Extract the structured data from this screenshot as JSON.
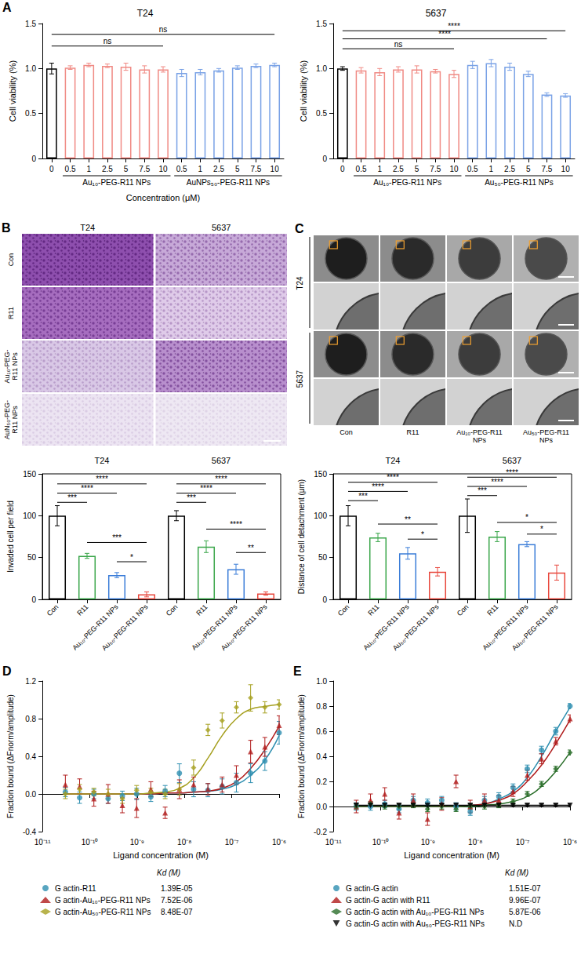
{
  "chart_data": [
    {
      "panel": "A",
      "type": "bar",
      "title": "T24",
      "x_label": "Concentration (μM)",
      "y_label": "Cell viability (%)",
      "categories": [
        0,
        0.5,
        1,
        2.5,
        5,
        7.5,
        10,
        0.5,
        1,
        2.5,
        5,
        7.5,
        10
      ],
      "values": [
        1.0,
        1.01,
        1.04,
        1.03,
        1.02,
        0.99,
        0.99,
        0.95,
        0.96,
        0.98,
        1.01,
        1.03,
        1.04
      ],
      "errors": [
        0.06,
        0.02,
        0.02,
        0.02,
        0.04,
        0.04,
        0.03,
        0.04,
        0.03,
        0.02,
        0.02,
        0.02,
        0.02
      ],
      "colors": [
        "#000000",
        "#f08a84",
        "#f08a84",
        "#f08a84",
        "#f08a84",
        "#f08a84",
        "#f08a84",
        "#7aa2e6",
        "#7aa2e6",
        "#7aa2e6",
        "#7aa2e6",
        "#7aa2e6",
        "#7aa2e6"
      ],
      "groups": [
        {
          "label": "Au₁₀-PEG-R11 NPs",
          "from": 1,
          "to": 6
        },
        {
          "label": "AuNPs₅₀-PEG-R11 NPs",
          "from": 7,
          "to": 12
        }
      ],
      "annotations": [
        {
          "text": "ns",
          "from": 0,
          "to": 12,
          "y": 1.38
        },
        {
          "text": "ns",
          "from": 0,
          "to": 6,
          "y": 1.25
        }
      ],
      "ylim": [
        0,
        1.5
      ],
      "yticks": [
        0,
        0.5,
        {
          "value": 1,
          "label": "1.0"
        },
        1.5
      ],
      "grid": false
    },
    {
      "type": "bar",
      "title": "5637",
      "y_label": "Cell viability (%)",
      "categories": [
        0,
        0.5,
        1,
        2.5,
        5,
        7.5,
        10,
        0.5,
        1,
        2.5,
        5,
        7.5,
        10
      ],
      "values": [
        1.0,
        0.98,
        0.96,
        0.99,
        0.99,
        0.97,
        0.94,
        1.04,
        1.06,
        1.02,
        0.94,
        0.71,
        0.7
      ],
      "errors": [
        0.02,
        0.03,
        0.04,
        0.03,
        0.04,
        0.02,
        0.04,
        0.04,
        0.04,
        0.04,
        0.03,
        0.02,
        0.02
      ],
      "colors": [
        "#000000",
        "#f08a84",
        "#f08a84",
        "#f08a84",
        "#f08a84",
        "#f08a84",
        "#f08a84",
        "#7aa2e6",
        "#7aa2e6",
        "#7aa2e6",
        "#7aa2e6",
        "#7aa2e6",
        "#7aa2e6"
      ],
      "groups": [
        {
          "label": "Au₁₀-PEG-R11 NPs",
          "from": 1,
          "to": 6
        },
        {
          "label": "Au₅₀-PEG-R11 NPs",
          "from": 7,
          "to": 12
        }
      ],
      "annotations": [
        {
          "text": "****",
          "from": 0,
          "to": 12,
          "y": 1.42
        },
        {
          "text": "****",
          "from": 0,
          "to": 11,
          "y": 1.33
        },
        {
          "text": "ns",
          "from": 0,
          "to": 6,
          "y": 1.22
        }
      ],
      "ylim": [
        0,
        1.5
      ],
      "yticks": [
        0,
        0.5,
        {
          "value": 1,
          "label": "1.0"
        },
        1.5
      ],
      "grid": false
    },
    {
      "type": "bar",
      "y_label": "Invaded cell per field",
      "categories": [
        "Con",
        "R11",
        "Au₁₀-PEG-R11 NPs",
        "Au₅₀-PEG-R11 NPs",
        "Con",
        "R11",
        "Au₁₀-PEG-R11 NPs",
        "Au₅₀-PEG-R11 NPs"
      ],
      "values": [
        100,
        52,
        29,
        6,
        100,
        63,
        36,
        7
      ],
      "errors": [
        12,
        3,
        3,
        3,
        6,
        7,
        6,
        2
      ],
      "colors": [
        "#000000",
        "#3aa64a",
        "#3b7dd8",
        "#e8473c",
        "#000000",
        "#3aa64a",
        "#3b7dd8",
        "#e8473c"
      ],
      "groups": [
        {
          "label": "T24",
          "from": 0,
          "to": 3
        },
        {
          "label": "5637",
          "from": 4,
          "to": 7
        }
      ],
      "annotations": [
        {
          "text": "***",
          "from": 0,
          "to": 1,
          "y": 116
        },
        {
          "text": "****",
          "from": 0,
          "to": 2,
          "y": 127
        },
        {
          "text": "****",
          "from": 0,
          "to": 3,
          "y": 138
        },
        {
          "text": "***",
          "from": 1,
          "to": 3,
          "y": 68
        },
        {
          "text": "*",
          "from": 2,
          "to": 3,
          "y": 45
        },
        {
          "text": "***",
          "from": 4,
          "to": 5,
          "y": 116
        },
        {
          "text": "****",
          "from": 4,
          "to": 6,
          "y": 127
        },
        {
          "text": "****",
          "from": 4,
          "to": 7,
          "y": 138
        },
        {
          "text": "****",
          "from": 5,
          "to": 7,
          "y": 84
        },
        {
          "text": "**",
          "from": 6,
          "to": 7,
          "y": 56
        }
      ],
      "ylim": [
        0,
        150
      ],
      "yticks": [
        0,
        50,
        100,
        150
      ],
      "grid": false
    },
    {
      "type": "bar",
      "y_label": "Distance of cell detachment (μm)",
      "categories": [
        "Con",
        "R11",
        "Au₁₀-PEG-R11 NPs",
        "Au₅₀-PEG-R11 NPs",
        "Con",
        "R11",
        "Au₁₀-PEG-R11 NPs",
        "Au₅₀-PEG-R11 NPs"
      ],
      "values": [
        100,
        74,
        55,
        33,
        100,
        75,
        66,
        32
      ],
      "errors": [
        12,
        5,
        7,
        5,
        20,
        6,
        3,
        9
      ],
      "colors": [
        "#000000",
        "#3aa64a",
        "#3b7dd8",
        "#e8473c",
        "#000000",
        "#3aa64a",
        "#3b7dd8",
        "#e8473c"
      ],
      "groups": [
        {
          "label": "T24",
          "from": 0,
          "to": 3
        },
        {
          "label": "5637",
          "from": 4,
          "to": 7
        }
      ],
      "annotations": [
        {
          "text": "***",
          "from": 0,
          "to": 1,
          "y": 118
        },
        {
          "text": "****",
          "from": 0,
          "to": 2,
          "y": 129
        },
        {
          "text": "****",
          "from": 0,
          "to": 3,
          "y": 140
        },
        {
          "text": "**",
          "from": 1,
          "to": 3,
          "y": 90
        },
        {
          "text": "*",
          "from": 2,
          "to": 3,
          "y": 72
        },
        {
          "text": "***",
          "from": 4,
          "to": 5,
          "y": 124
        },
        {
          "text": "****",
          "from": 4,
          "to": 6,
          "y": 135
        },
        {
          "text": "****",
          "from": 4,
          "to": 7,
          "y": 146
        },
        {
          "text": "*",
          "from": 5,
          "to": 7,
          "y": 92
        },
        {
          "text": "*",
          "from": 6,
          "to": 7,
          "y": 78
        }
      ],
      "ylim": [
        0,
        150
      ],
      "yticks": [
        0,
        50,
        100,
        150
      ],
      "grid": false
    },
    {
      "panel": "D",
      "type": "scatter",
      "x_label": "Ligand concentration (M)",
      "y_label": "Fraction bound (ΔFnorm/amplitude)",
      "log": "x",
      "legend": "bottom",
      "grid": false,
      "kd_header": "Kd (M)",
      "x": [
        3.05e-11,
        6.1e-11,
        1.22e-10,
        2.44e-10,
        4.88e-10,
        9.77e-10,
        1.95e-09,
        3.91e-09,
        7.81e-09,
        1.56e-08,
        3.13e-08,
        6.25e-08,
        1.25e-07,
        2.5e-07,
        5e-07,
        1e-06
      ],
      "xlim": [
        1e-11,
        1e-06
      ],
      "xticks": [
        {
          "value": 1e-11,
          "label": "10⁻¹¹"
        },
        {
          "value": 1e-10,
          "label": "10⁻¹⁰"
        },
        {
          "value": 1e-09,
          "label": "10⁻⁹"
        },
        {
          "value": 1e-08,
          "label": "10⁻⁸"
        },
        {
          "value": 1e-07,
          "label": "10⁻⁷"
        },
        {
          "value": 1e-06,
          "label": "10⁻⁶"
        }
      ],
      "ylim": [
        -0.4,
        1.2
      ],
      "yticks": [
        -0.4,
        {
          "value": 0,
          "label": "0.0"
        },
        0.4,
        0.8,
        1.2
      ],
      "series": [
        {
          "name": "G actin-R11",
          "color": "#2e8fb0",
          "marker": "circle",
          "kd": "1.39E-05",
          "values": [
            0.02,
            -0.04,
            0.0,
            -0.05,
            -0.02,
            0.0,
            -0.03,
            0.03,
            0.22,
            0.05,
            0.04,
            0.08,
            0.12,
            0.22,
            0.35,
            0.65
          ],
          "errors": [
            0.05,
            0.06,
            0.05,
            0.05,
            0.05,
            0.06,
            0.05,
            0.06,
            0.1,
            0.08,
            0.07,
            0.08,
            0.1,
            0.1,
            0.1,
            0.12
          ],
          "fit": [
            0,
            0,
            0,
            0,
            0,
            0,
            0,
            0.01,
            0.01,
            0.02,
            0.03,
            0.05,
            0.1,
            0.2,
            0.36,
            0.62
          ]
        },
        {
          "name": "G actin-Au₁₀-PEG-R11 NPs",
          "color": "#b01c1c",
          "marker": "triangle",
          "kd": "7.52E-06",
          "values": [
            0.1,
            0.08,
            -0.05,
            0.0,
            -0.12,
            -0.15,
            0.05,
            -0.2,
            0.05,
            0.1,
            0.05,
            0.1,
            0.2,
            0.45,
            0.5,
            0.73
          ],
          "errors": [
            0.1,
            0.08,
            0.08,
            0.1,
            0.08,
            0.1,
            0.08,
            0.06,
            0.1,
            0.08,
            0.06,
            0.08,
            0.1,
            0.12,
            0.1,
            0.1
          ],
          "fit": [
            0,
            0,
            0,
            0,
            0,
            0,
            0,
            0.01,
            0.01,
            0.02,
            0.03,
            0.06,
            0.13,
            0.27,
            0.47,
            0.72
          ]
        },
        {
          "name": "G actin-Au₅₀-PEG-R11 NPs",
          "color": "#a6a020",
          "marker": "diamond",
          "kd": "8.48E-07",
          "values": [
            0.0,
            0.05,
            0.02,
            0.0,
            -0.05,
            0.04,
            0.02,
            0.0,
            0.05,
            0.28,
            0.68,
            0.78,
            0.92,
            1.02,
            0.92,
            0.95
          ],
          "errors": [
            0.05,
            0.05,
            0.04,
            0.05,
            0.05,
            0.05,
            0.04,
            0.05,
            0.06,
            0.08,
            0.06,
            0.08,
            0.06,
            0.14,
            0.06,
            0.05
          ],
          "fit": [
            0,
            0,
            0,
            0,
            0,
            0,
            0.01,
            0.02,
            0.06,
            0.17,
            0.38,
            0.62,
            0.8,
            0.9,
            0.93,
            0.95
          ]
        }
      ]
    },
    {
      "panel": "E",
      "type": "scatter",
      "x_label": "Ligand concentration (M)",
      "y_label": "Fraction bound (ΔFnorm/amplitude)",
      "log": "x",
      "legend": "bottom",
      "grid": false,
      "kd_header": "Kd (M)",
      "x": [
        3.05e-11,
        6.1e-11,
        1.22e-10,
        2.44e-10,
        4.88e-10,
        9.77e-10,
        1.95e-09,
        3.91e-09,
        7.81e-09,
        1.56e-08,
        3.13e-08,
        6.25e-08,
        1.25e-07,
        2.5e-07,
        5e-07,
        1e-06
      ],
      "xlim": [
        1e-11,
        1e-06
      ],
      "xticks": [
        {
          "value": 1e-11,
          "label": "10⁻¹¹"
        },
        {
          "value": 1e-10,
          "label": "10⁻¹⁰"
        },
        {
          "value": 1e-09,
          "label": "10⁻⁹"
        },
        {
          "value": 1e-08,
          "label": "10⁻⁸"
        },
        {
          "value": 1e-07,
          "label": "10⁻⁷"
        },
        {
          "value": 1e-06,
          "label": "10⁻⁶"
        }
      ],
      "ylim": [
        -0.2,
        1.0
      ],
      "yticks": [
        -0.2,
        {
          "value": 0,
          "label": "0.0"
        },
        0.2,
        0.4,
        0.6,
        0.8,
        {
          "value": 1,
          "label": "1.0"
        }
      ],
      "series": [
        {
          "name": "G actin-G actin",
          "color": "#2e8fb0",
          "marker": "circle",
          "kd": "1.51E-07",
          "values": [
            0.0,
            0.0,
            0.02,
            -0.02,
            0.05,
            0.03,
            0.05,
            0.0,
            -0.04,
            0.05,
            0.08,
            0.15,
            0.3,
            0.45,
            0.6,
            0.8
          ],
          "errors": [
            0.03,
            0.03,
            0.03,
            0.03,
            0.03,
            0.03,
            0.03,
            0.03,
            0.03,
            0.03,
            0.03,
            0.03,
            0.03,
            0.03,
            0.03,
            0.02
          ],
          "fit": [
            0,
            0,
            0,
            0,
            0,
            0,
            0,
            0,
            0.01,
            0.02,
            0.06,
            0.12,
            0.23,
            0.4,
            0.6,
            0.79
          ]
        },
        {
          "name": "G actin-G actin with R11",
          "color": "#b01c1c",
          "marker": "triangle",
          "kd": "9.96E-07",
          "values": [
            0.0,
            0.05,
            0.1,
            -0.05,
            0.05,
            -0.1,
            0.02,
            0.2,
            0.0,
            0.05,
            0.05,
            0.12,
            0.25,
            0.38,
            0.52,
            0.7
          ],
          "errors": [
            0.05,
            0.05,
            0.05,
            0.05,
            0.05,
            0.05,
            0.05,
            0.05,
            0.05,
            0.05,
            0.04,
            0.04,
            0.04,
            0.04,
            0.03,
            0.03
          ],
          "fit": [
            0,
            0,
            0,
            0,
            0,
            0,
            0,
            0,
            0.01,
            0.02,
            0.05,
            0.1,
            0.2,
            0.33,
            0.5,
            0.69
          ]
        },
        {
          "name": "G actin-G actin with Au₁₀-PEG-R11 NPs",
          "color": "#2a6e2a",
          "marker": "diamond",
          "kd": "5.87E-06",
          "values": [
            0.0,
            0.02,
            0.0,
            0.0,
            0.01,
            -0.02,
            0.0,
            -0.02,
            0.0,
            0.0,
            0.01,
            0.04,
            0.1,
            0.18,
            0.3,
            0.43
          ],
          "errors": [
            0.02,
            0.02,
            0.02,
            0.02,
            0.02,
            0.02,
            0.02,
            0.02,
            0.02,
            0.02,
            0.02,
            0.02,
            0.02,
            0.02,
            0.02,
            0.02
          ],
          "fit": [
            0,
            0,
            0,
            0,
            0,
            0,
            0,
            0,
            0,
            0.01,
            0.02,
            0.04,
            0.08,
            0.16,
            0.28,
            0.43
          ]
        },
        {
          "name": "G actin-G actin with Au₅₀-PEG-R11 NPs",
          "color": "#000000",
          "marker": "triangle-down",
          "kd": "N.D",
          "values": [
            0.01,
            0.01,
            0.01,
            0.01,
            0.01,
            0.01,
            0.01,
            0.01,
            0.01,
            0.01,
            0.01,
            0.01,
            0.01,
            0.01,
            0.01,
            0.01
          ],
          "errors": [
            0.01,
            0.01,
            0.01,
            0.01,
            0.01,
            0.01,
            0.01,
            0.01,
            0.01,
            0.01,
            0.01,
            0.01,
            0.01,
            0.01,
            0.01,
            0.01
          ],
          "fit": [
            0.01,
            0.01,
            0.01,
            0.01,
            0.01,
            0.01,
            0.01,
            0.01,
            0.01,
            0.01,
            0.01,
            0.01,
            0.01,
            0.01,
            0.01,
            0.01
          ]
        }
      ]
    }
  ],
  "image_panels": [
    {
      "panel": "B",
      "columns": [
        "T24",
        "5637"
      ],
      "rows": [
        "Con",
        "R11",
        "Au₁₀-PEG-R11 NPs",
        "AuN₅₀-PEG-R11 NPs"
      ]
    },
    {
      "panel": "C",
      "rows": [
        "T24",
        "5637"
      ],
      "columns": [
        "Con",
        "R11",
        "Au₁₀-PEG-R11 NPs",
        "Au₅₀-PEG-R11 NPs"
      ]
    }
  ]
}
